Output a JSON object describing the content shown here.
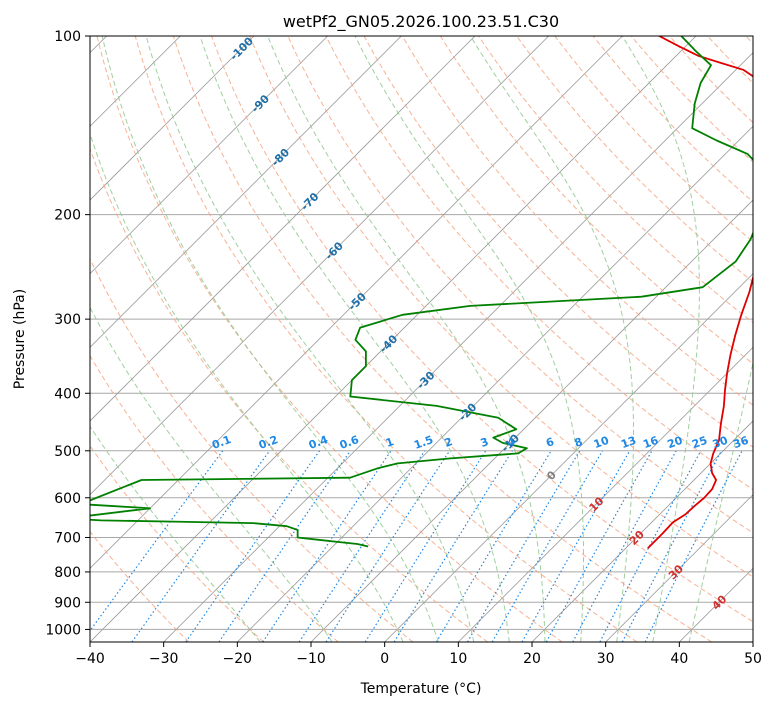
{
  "chart_data": {
    "type": "line",
    "title": "wetPf2_GN05.2026.100.23.51.C30",
    "xlabel": "Temperature (°C)",
    "ylabel": "Pressure (hPa)",
    "xlim": [
      -40,
      50
    ],
    "ylim": [
      1050,
      100
    ],
    "y_scale": "log",
    "x_ticks": [
      -40,
      -30,
      -20,
      -10,
      0,
      10,
      20,
      30,
      40,
      50
    ],
    "y_ticks": [
      1000,
      900,
      800,
      700,
      600,
      500,
      400,
      300,
      200,
      100
    ],
    "grid": true,
    "skew": 45,
    "series": [
      {
        "role": "temperature",
        "color": "#e00000",
        "points": [
          [
            23,
            730
          ],
          [
            23,
            690
          ],
          [
            22.9,
            660
          ],
          [
            23.5,
            640
          ],
          [
            23.6,
            620
          ],
          [
            23.8,
            600
          ],
          [
            23.7,
            580
          ],
          [
            23,
            560
          ],
          [
            21.5,
            545
          ],
          [
            20,
            525
          ],
          [
            19,
            505
          ],
          [
            18,
            480
          ],
          [
            16,
            450
          ],
          [
            14,
            420
          ],
          [
            12,
            395
          ],
          [
            10,
            370
          ],
          [
            8,
            345
          ],
          [
            6,
            320
          ],
          [
            4,
            295
          ],
          [
            2,
            270
          ],
          [
            0,
            250
          ],
          [
            -1.5,
            230
          ],
          [
            -3,
            215
          ],
          [
            -4.5,
            200
          ],
          [
            -6.5,
            185
          ],
          [
            -9,
            170
          ],
          [
            -12,
            155
          ],
          [
            -15,
            143
          ],
          [
            -17.5,
            135
          ],
          [
            -20,
            128
          ],
          [
            -23,
            122
          ],
          [
            -26,
            118
          ],
          [
            -29,
            114
          ],
          [
            -33,
            111
          ],
          [
            -37,
            108
          ],
          [
            -41,
            104
          ],
          [
            -45,
            100
          ]
        ]
      },
      {
        "role": "dewpoint",
        "color": "#008000",
        "points": [
          [
            -15.2,
            725
          ],
          [
            -17,
            718
          ],
          [
            -20,
            712
          ],
          [
            -23,
            706
          ],
          [
            -26,
            700
          ],
          [
            -27,
            680
          ],
          [
            -29,
            670
          ],
          [
            -34,
            662
          ],
          [
            -45,
            658
          ],
          [
            -55,
            655
          ],
          [
            -60,
            650
          ],
          [
            -50,
            625
          ],
          [
            -55,
            620
          ],
          [
            -60,
            615
          ],
          [
            -55,
            560
          ],
          [
            -27,
            555
          ],
          [
            -24.5,
            535
          ],
          [
            -22.5,
            525
          ],
          [
            -16,
            515
          ],
          [
            -7.5,
            505
          ],
          [
            -7,
            495
          ],
          [
            -11,
            485
          ],
          [
            -13,
            475
          ],
          [
            -11,
            460
          ],
          [
            -15,
            440
          ],
          [
            -25,
            420
          ],
          [
            -38,
            405
          ],
          [
            -40,
            380
          ],
          [
            -40,
            360
          ],
          [
            -42,
            340
          ],
          [
            -45,
            325
          ],
          [
            -46,
            310
          ],
          [
            -42,
            295
          ],
          [
            -34,
            285
          ],
          [
            -12,
            275
          ],
          [
            -5,
            265
          ],
          [
            -4,
            240
          ],
          [
            -5,
            220
          ],
          [
            -7,
            200
          ],
          [
            -9,
            185
          ],
          [
            -12,
            170
          ],
          [
            -17,
            158
          ],
          [
            -23,
            150
          ],
          [
            -28,
            143
          ],
          [
            -31,
            130
          ],
          [
            -33,
            120
          ],
          [
            -34,
            112
          ],
          [
            -38,
            106
          ],
          [
            -42,
            100
          ]
        ]
      }
    ],
    "isotherm_labels": [
      "-100",
      "-90",
      "-80",
      "-70",
      "-60",
      "-50",
      "-40",
      "-30",
      "-20",
      "-10",
      "0",
      "10",
      "20",
      "30",
      "40"
    ],
    "mixing_ratio_labels": [
      "0.1",
      "0.2",
      "0.4",
      "0.6",
      "1",
      "1.5",
      "2",
      "3",
      "4",
      "6",
      "8",
      "10",
      "13",
      "16",
      "20",
      "25",
      "30",
      "36"
    ]
  },
  "colors": {
    "isotherm_cold": "#1f6fa8",
    "isotherm_zero": "#808080",
    "isotherm_warm": "#d03030",
    "mixing_ratio": "#1e88e5",
    "dry_adiabat": "#f4a582",
    "moist_adiabat": "#8fc78f",
    "skew_line": "#999999",
    "grid": "#a8a8a8"
  }
}
